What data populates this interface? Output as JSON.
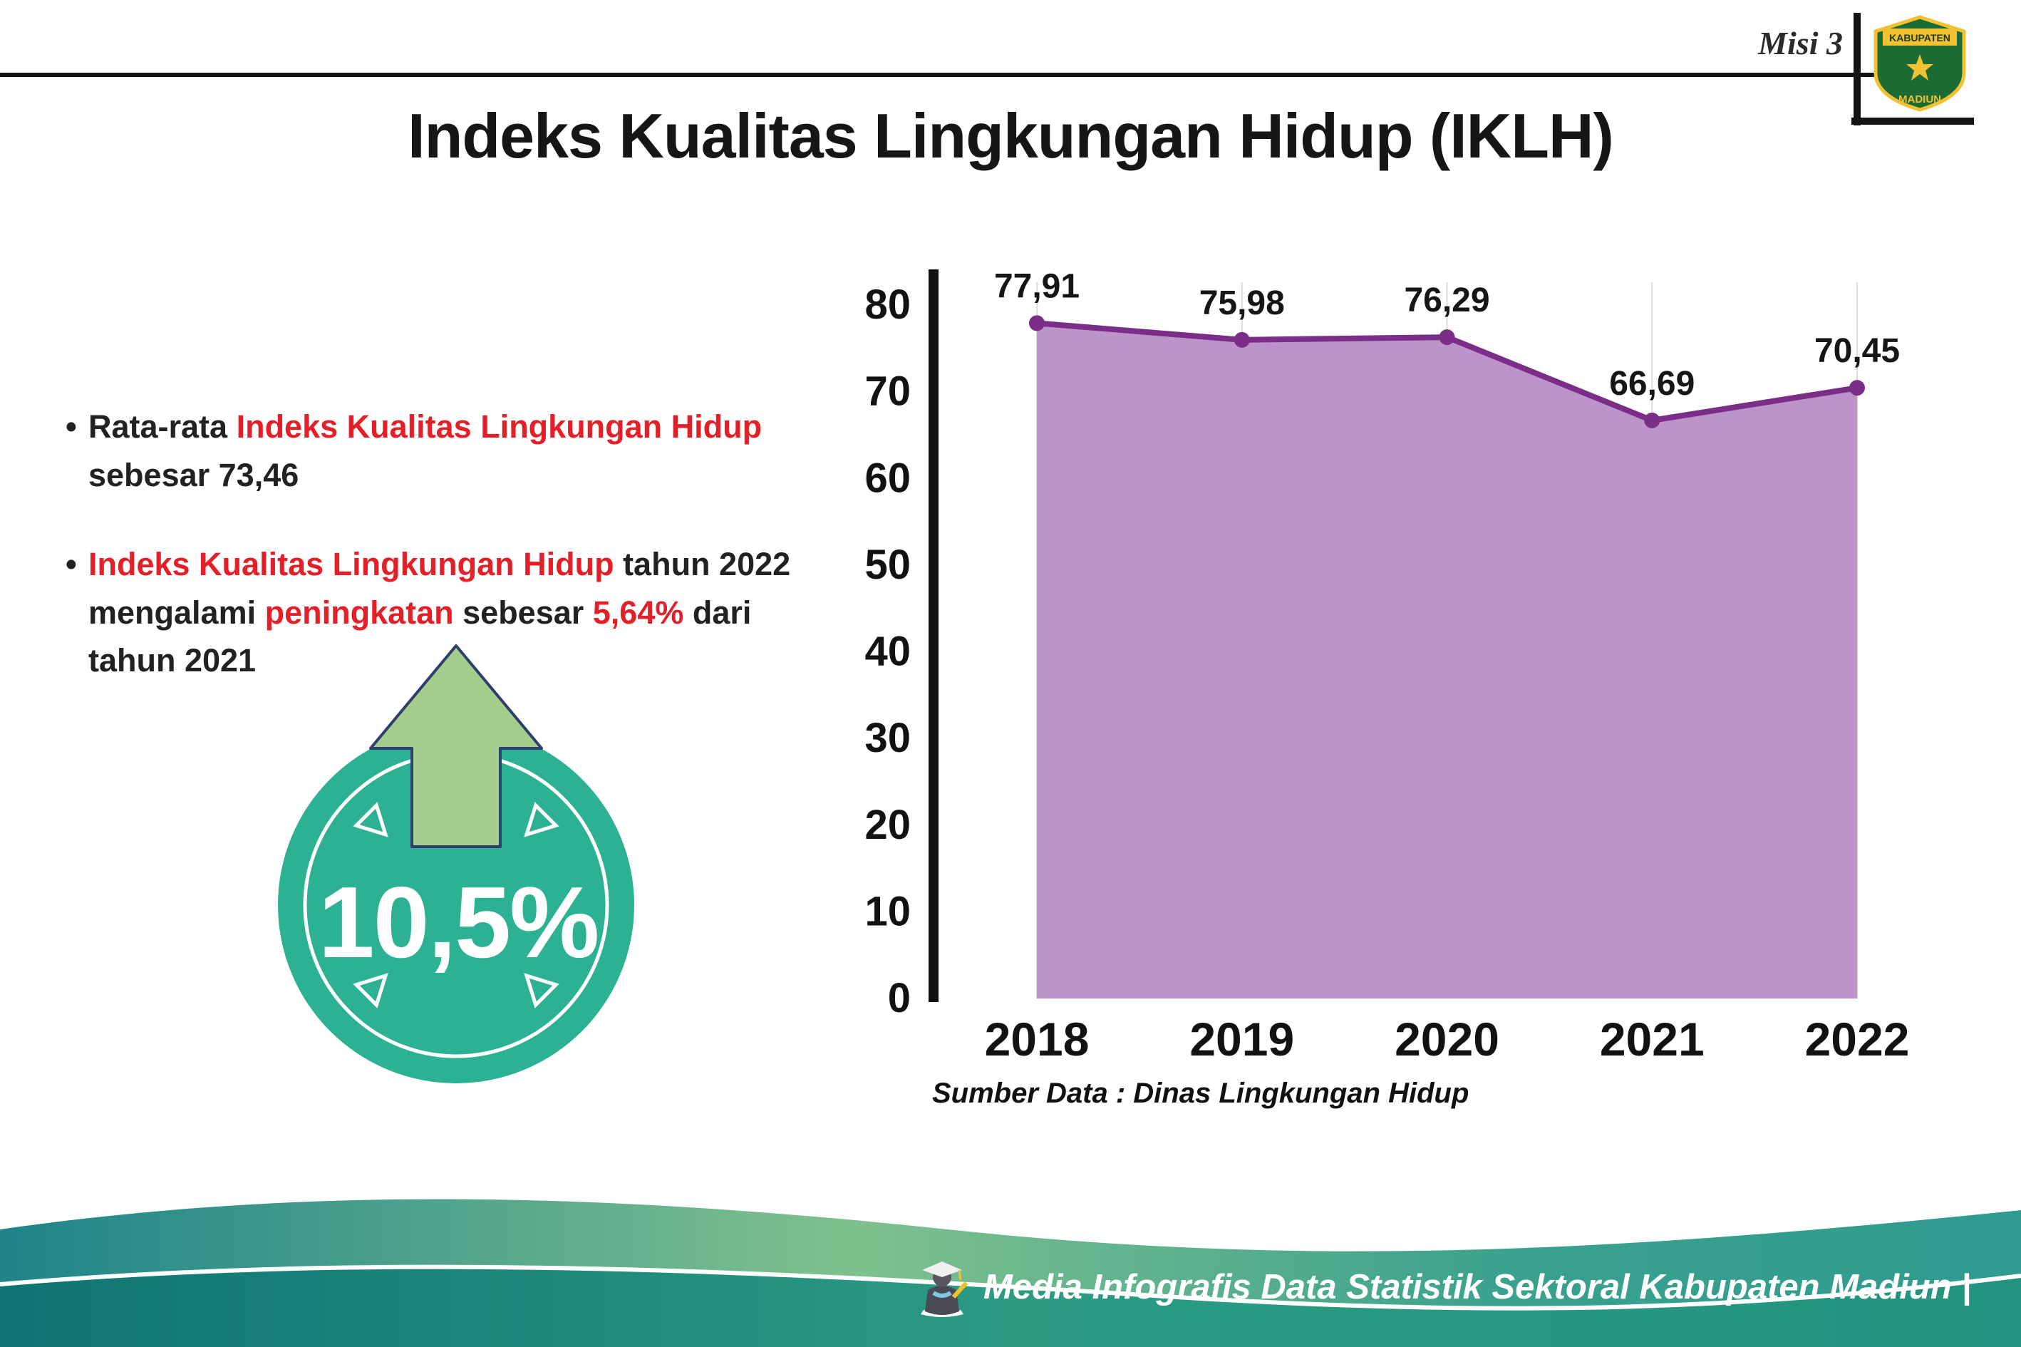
{
  "header": {
    "misi_label": "Misi 3",
    "title": "Indeks Kualitas Lingkungan Hidup (IKLH)",
    "logo_top": "KABUPATEN",
    "logo_bottom": "MADIUN"
  },
  "bullets": {
    "b1": {
      "pre": "Rata-rata ",
      "red": "Indeks Kualitas Lingkungan Hidup",
      "line2": "sebesar 73,46"
    },
    "b2": {
      "red1": "Indeks Kualitas Lingkungan Hidup",
      "post1": " tahun 2022",
      "line2_pre": "mengalami ",
      "red2": "peningkatan",
      "mid": " sebesar ",
      "red3": "5,64%",
      "post2": " dari",
      "line3": "tahun 2021"
    }
  },
  "badge": {
    "value": "10,5%",
    "circle_color": "#2cb292",
    "arrow_color": "#a5cd8c"
  },
  "chart_data": {
    "type": "area",
    "categories": [
      "2018",
      "2019",
      "2020",
      "2021",
      "2022"
    ],
    "values": [
      77.91,
      75.98,
      76.29,
      66.69,
      70.45
    ],
    "value_labels": [
      "77,91",
      "75,98",
      "76,29",
      "66,69",
      "70,45"
    ],
    "yticks": [
      0,
      10,
      20,
      30,
      40,
      50,
      60,
      70,
      80
    ],
    "ylim": [
      0,
      80
    ],
    "grid": "vertical-light",
    "legend": "none",
    "fill_color": "#bc93ca",
    "line_color": "#7b2e87",
    "point_color": "#7b2e87",
    "source": "Sumber Data : Dinas Lingkungan Hidup"
  },
  "footer": {
    "caption": "Media Infografis Data Statistik Sektoral Kabupaten Madiun |"
  },
  "colors": {
    "accent_red": "#e32028",
    "teal_badge": "#2cb292",
    "arrow_green": "#a5cd8c",
    "wave_teal_dark": "#0e7473",
    "wave_green_light": "#7fc18e"
  }
}
